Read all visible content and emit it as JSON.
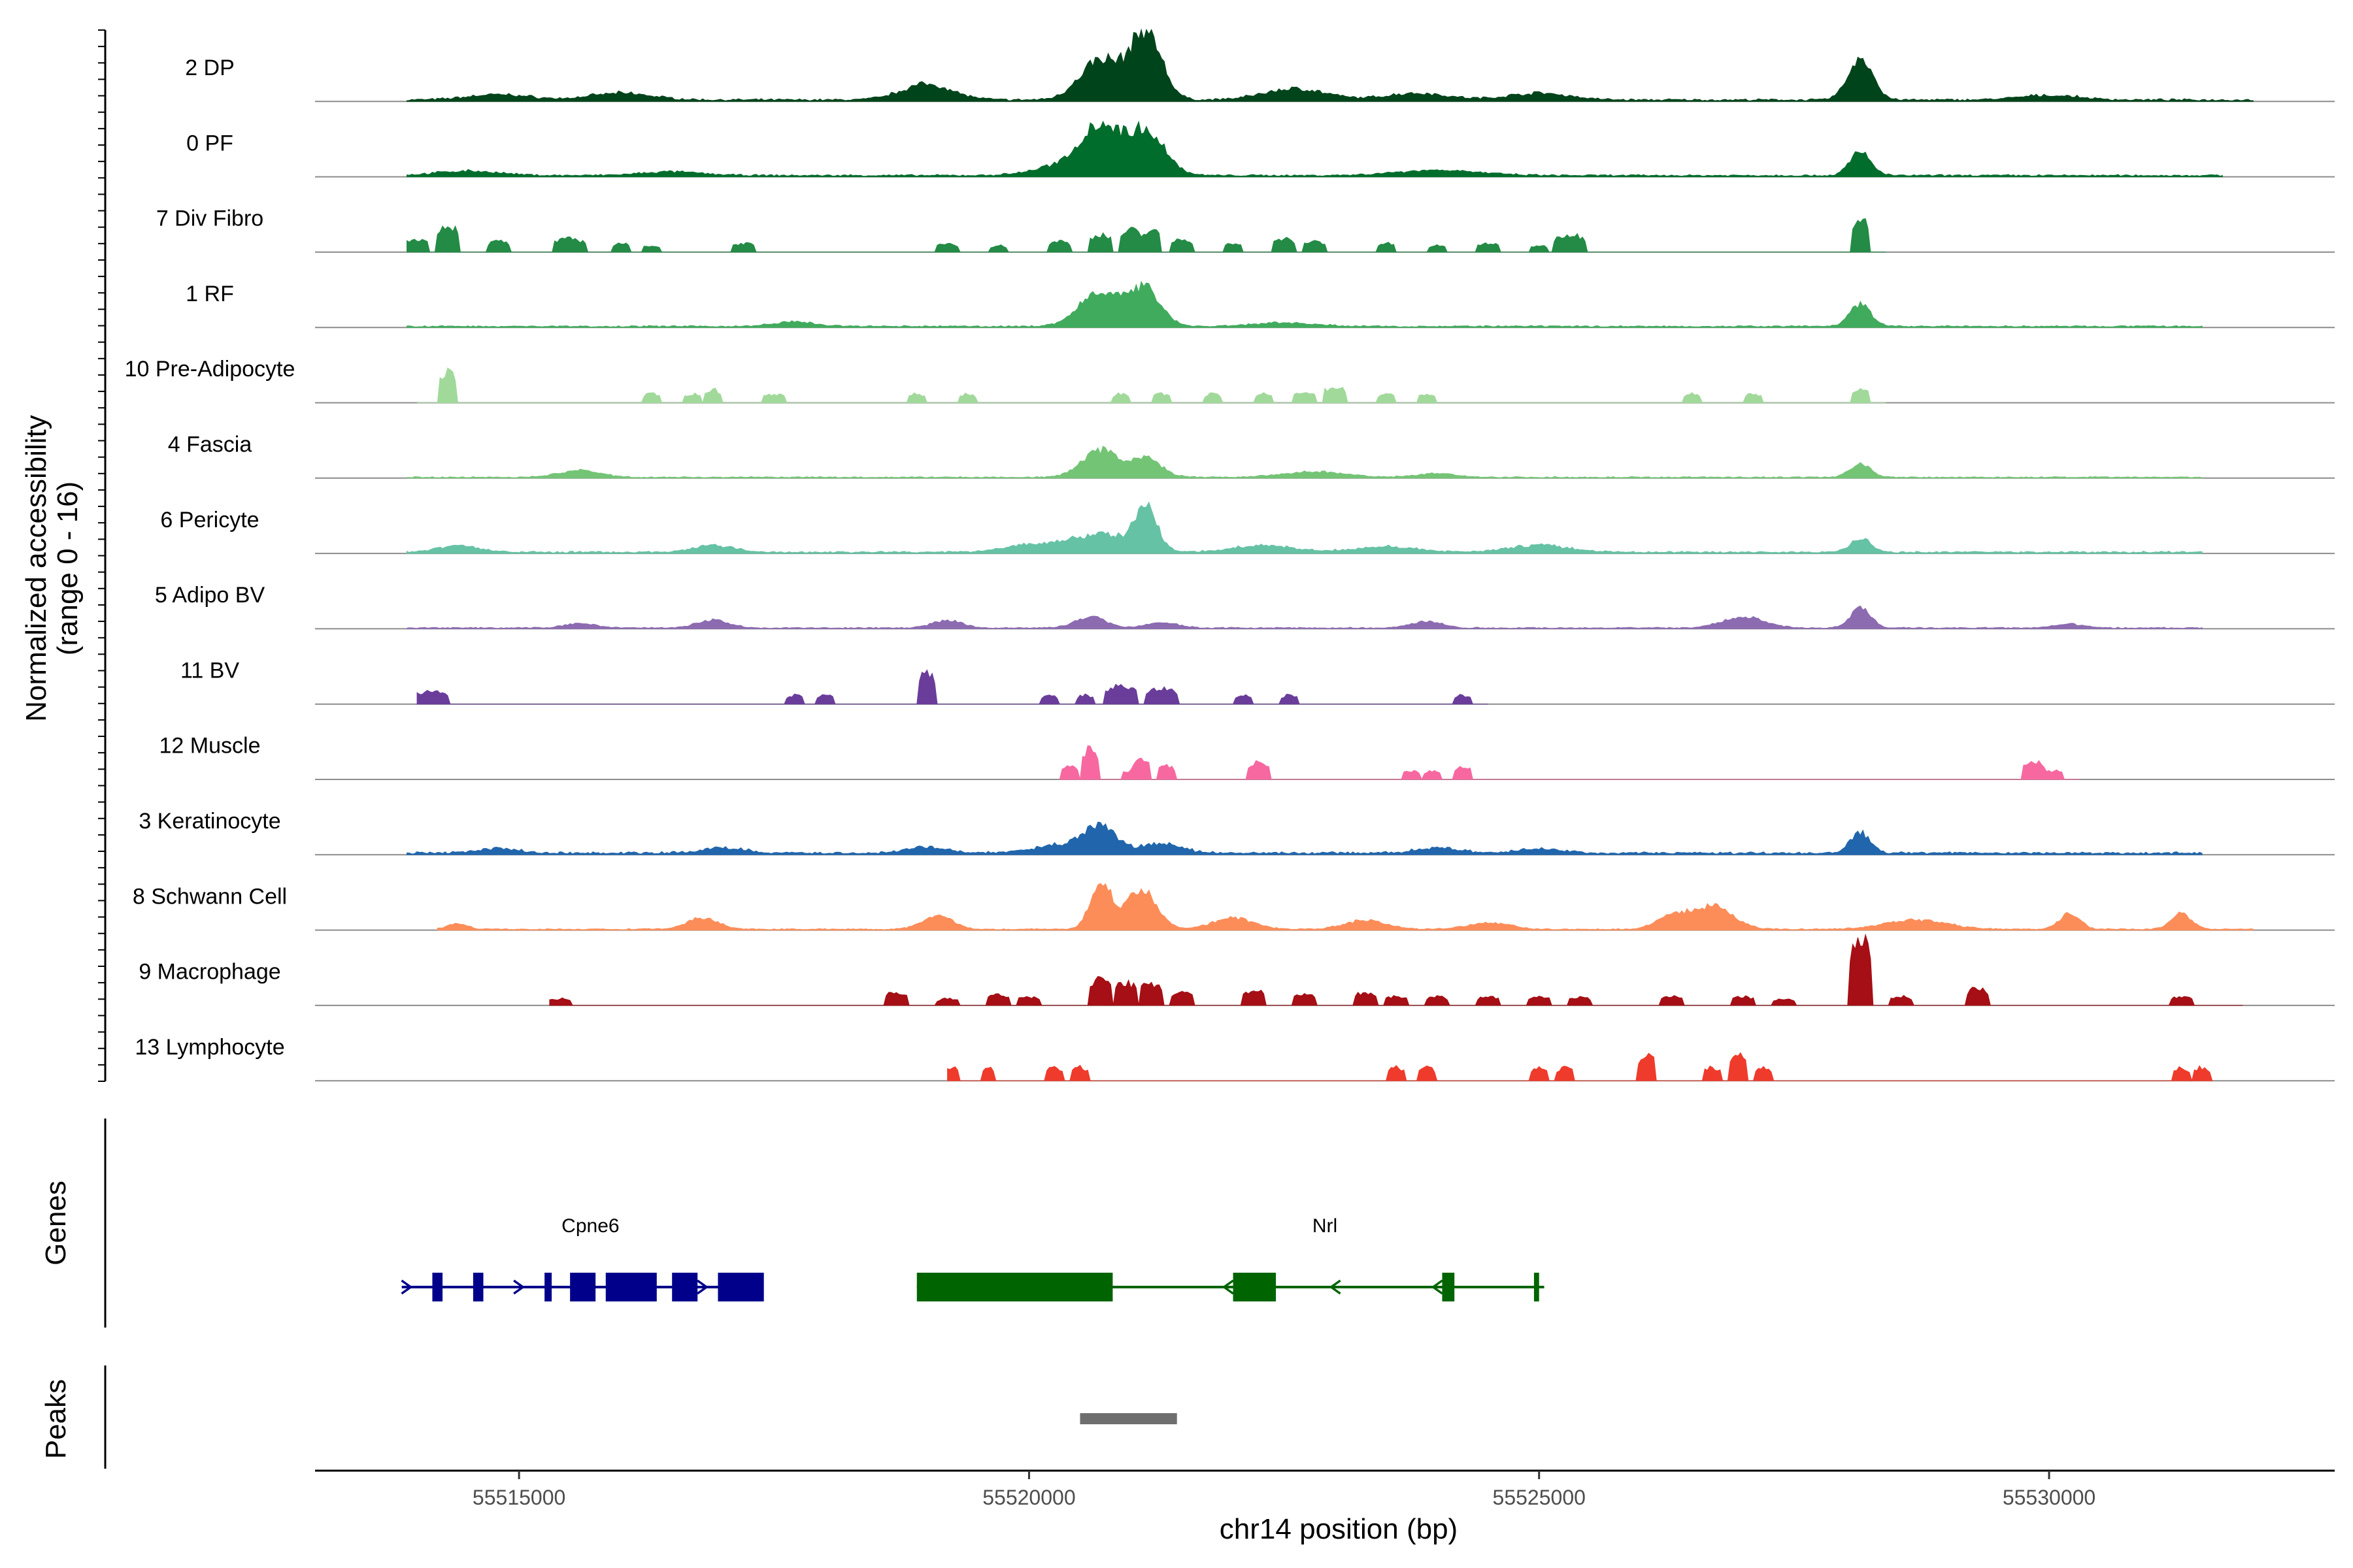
{
  "chart_data": {
    "type": "area",
    "title": "",
    "ylabel": "Normalized accessibility",
    "ylabel_sub": "(range 0 - 16)",
    "xlabel": "chr14 position (bp)",
    "xlim": [
      55513000,
      55532800
    ],
    "ylim": [
      0,
      16
    ],
    "x_ticks": [
      55515000,
      55520000,
      55525000,
      55530000
    ],
    "x_tick_labels": [
      "55515000",
      "55520000",
      "55525000",
      "55530000"
    ],
    "tracks_label": "Genes",
    "peaks_label": "Peaks",
    "series": [
      {
        "name": "2 DP",
        "color": "#00441b",
        "style": "smooth",
        "base": 0.35,
        "start": 55513900,
        "end": 55532000,
        "peaks": [
          [
            55520700,
            9,
            200
          ],
          [
            55521150,
            15,
            150
          ],
          [
            55528150,
            9,
            120
          ],
          [
            55519000,
            3.5,
            250
          ],
          [
            55522600,
            2.5,
            300
          ],
          [
            55516000,
            1.5,
            300
          ],
          [
            55523800,
            1.5,
            300
          ],
          [
            55525000,
            1.5,
            300
          ],
          [
            55514800,
            1.2,
            300
          ],
          [
            55530000,
            1,
            300
          ]
        ]
      },
      {
        "name": "0 PF",
        "color": "#006d2c",
        "style": "smooth",
        "base": 0.3,
        "start": 55513900,
        "end": 55531700,
        "peaks": [
          [
            55520700,
            10,
            180
          ],
          [
            55521150,
            10,
            180
          ],
          [
            55528150,
            5.5,
            100
          ],
          [
            55520400,
            2.5,
            300
          ],
          [
            55524000,
            1.2,
            400
          ],
          [
            55514500,
            1,
            300
          ],
          [
            55516500,
            0.8,
            300
          ]
        ]
      },
      {
        "name": "7 Div Fibro",
        "color": "#238b45",
        "style": "sparse",
        "start": 55513900,
        "end": 55528400,
        "peaks": [
          [
            55514300,
            6,
            120
          ],
          [
            55514000,
            3,
            100
          ],
          [
            55514800,
            2.5,
            100
          ],
          [
            55515500,
            3,
            150
          ],
          [
            55516000,
            2,
            80
          ],
          [
            55516300,
            1.5,
            80
          ],
          [
            55517200,
            2,
            100
          ],
          [
            55519200,
            2,
            100
          ],
          [
            55519700,
            1.5,
            80
          ],
          [
            55520300,
            2.5,
            100
          ],
          [
            55520700,
            4,
            100
          ],
          [
            55521000,
            5,
            100
          ],
          [
            55521200,
            5,
            80
          ],
          [
            55521500,
            3,
            100
          ],
          [
            55522000,
            2,
            80
          ],
          [
            55522500,
            3,
            100
          ],
          [
            55522800,
            2.5,
            100
          ],
          [
            55523500,
            2,
            80
          ],
          [
            55524000,
            1.5,
            80
          ],
          [
            55524500,
            2,
            100
          ],
          [
            55525000,
            1.5,
            80
          ],
          [
            55525300,
            4,
            150
          ],
          [
            55528150,
            8,
            80
          ]
        ]
      },
      {
        "name": "1 RF",
        "color": "#41ab5d",
        "style": "smooth",
        "base": 0.25,
        "start": 55513900,
        "end": 55531500,
        "peaks": [
          [
            55520700,
            8,
            200
          ],
          [
            55521150,
            8,
            150
          ],
          [
            55528150,
            5,
            100
          ],
          [
            55517700,
            1,
            200
          ],
          [
            55522500,
            0.8,
            300
          ]
        ]
      },
      {
        "name": "10 Pre-Adipocyte",
        "color": "#a1d99b",
        "style": "sparse",
        "start": 55514000,
        "end": 55528400,
        "peaks": [
          [
            55514300,
            7,
            90
          ],
          [
            55516300,
            2,
            80
          ],
          [
            55516700,
            2,
            80
          ],
          [
            55516900,
            3,
            80
          ],
          [
            55517500,
            2,
            100
          ],
          [
            55518900,
            2,
            80
          ],
          [
            55519400,
            2,
            80
          ],
          [
            55520900,
            2,
            80
          ],
          [
            55521300,
            2,
            80
          ],
          [
            55521800,
            2,
            80
          ],
          [
            55522300,
            2,
            80
          ],
          [
            55522700,
            2.5,
            100
          ],
          [
            55523000,
            3.5,
            120
          ],
          [
            55523500,
            2,
            80
          ],
          [
            55523900,
            2,
            80
          ],
          [
            55526500,
            2,
            80
          ],
          [
            55527100,
            2,
            80
          ],
          [
            55528150,
            3,
            80
          ]
        ]
      },
      {
        "name": "4 Fascia",
        "color": "#74c476",
        "style": "smooth",
        "base": 0.2,
        "start": 55513900,
        "end": 55531500,
        "peaks": [
          [
            55520700,
            6,
            180
          ],
          [
            55521150,
            4,
            150
          ],
          [
            55528150,
            3,
            100
          ],
          [
            55515600,
            1.5,
            200
          ],
          [
            55522800,
            1.2,
            300
          ],
          [
            55524000,
            0.8,
            200
          ]
        ]
      },
      {
        "name": "6 Pericyte",
        "color": "#66c2a4",
        "style": "smooth",
        "base": 0.3,
        "start": 55513900,
        "end": 55531500,
        "peaks": [
          [
            55521150,
            10,
            100
          ],
          [
            55520700,
            4,
            300
          ],
          [
            55528150,
            3,
            100
          ],
          [
            55514400,
            1.5,
            200
          ],
          [
            55516900,
            1.5,
            200
          ],
          [
            55520000,
            1.5,
            250
          ],
          [
            55522300,
            1.5,
            300
          ],
          [
            55523500,
            1.2,
            300
          ],
          [
            55525000,
            1.5,
            300
          ]
        ]
      },
      {
        "name": "5 Adipo BV",
        "color": "#8c6bb1",
        "style": "smooth",
        "base": 0.2,
        "start": 55513900,
        "end": 55531500,
        "peaks": [
          [
            55528150,
            4.5,
            100
          ],
          [
            55520600,
            2.5,
            150
          ],
          [
            55527000,
            2.5,
            200
          ],
          [
            55516900,
            1.8,
            150
          ],
          [
            55519200,
            1.6,
            150
          ],
          [
            55521300,
            1.3,
            150
          ],
          [
            55523900,
            1.5,
            150
          ],
          [
            55515600,
            1,
            150
          ],
          [
            55530200,
            0.8,
            150
          ]
        ]
      },
      {
        "name": "11 BV",
        "color": "#6a3d9a",
        "style": "sparse",
        "start": 55514000,
        "end": 55524500,
        "peaks": [
          [
            55514150,
            3,
            150
          ],
          [
            55517700,
            2,
            80
          ],
          [
            55518000,
            2,
            80
          ],
          [
            55519000,
            7,
            80
          ],
          [
            55520200,
            2,
            80
          ],
          [
            55520550,
            2,
            80
          ],
          [
            55520900,
            4,
            150
          ],
          [
            55521300,
            3.5,
            150
          ],
          [
            55522100,
            2,
            80
          ],
          [
            55522550,
            2,
            80
          ],
          [
            55524250,
            2,
            80
          ]
        ]
      },
      {
        "name": "12 Muscle",
        "color": "#f768a1",
        "style": "sparse",
        "start": 55520300,
        "end": 55530300,
        "peaks": [
          [
            55520400,
            3,
            80
          ],
          [
            55520600,
            7,
            80
          ],
          [
            55521000,
            2,
            80
          ],
          [
            55521100,
            5,
            80
          ],
          [
            55521350,
            3,
            80
          ],
          [
            55522250,
            4,
            100
          ],
          [
            55523750,
            2,
            80
          ],
          [
            55523950,
            2,
            80
          ],
          [
            55524250,
            3,
            80
          ],
          [
            55529850,
            4,
            100
          ],
          [
            55530050,
            2,
            80
          ]
        ]
      },
      {
        "name": "3 Keratinocyte",
        "color": "#2166ac",
        "style": "smooth",
        "base": 0.4,
        "start": 55513900,
        "end": 55531500,
        "peaks": [
          [
            55520700,
            5,
            150
          ],
          [
            55528150,
            4.5,
            100
          ],
          [
            55520400,
            2,
            300
          ],
          [
            55521300,
            2,
            200
          ],
          [
            55519000,
            1.3,
            200
          ],
          [
            55517000,
            1.2,
            200
          ],
          [
            55524000,
            1.2,
            200
          ],
          [
            55525000,
            1,
            200
          ],
          [
            55514800,
            1,
            200
          ]
        ]
      },
      {
        "name": "8 Schwann Cell",
        "color": "#fc8d59",
        "style": "smooth",
        "base": 0.2,
        "start": 55514200,
        "end": 55532000,
        "peaks": [
          [
            55520700,
            11,
            100
          ],
          [
            55521100,
            9,
            150
          ],
          [
            55526700,
            5,
            200
          ],
          [
            55526300,
            3,
            150
          ],
          [
            55519100,
            3,
            150
          ],
          [
            55530200,
            3.5,
            100
          ],
          [
            55531300,
            3.5,
            100
          ],
          [
            55522000,
            2.5,
            200
          ],
          [
            55523300,
            2,
            200
          ],
          [
            55524500,
            1.5,
            200
          ],
          [
            55528700,
            2,
            300
          ],
          [
            55516800,
            2.5,
            150
          ],
          [
            55514400,
            1.2,
            100
          ]
        ]
      },
      {
        "name": "9 Macrophage",
        "color": "#a50f15",
        "style": "sparse",
        "start": 55515300,
        "end": 55531900,
        "peaks": [
          [
            55515400,
            1.5,
            100
          ],
          [
            55518700,
            3,
            120
          ],
          [
            55519200,
            1.5,
            100
          ],
          [
            55519700,
            2.5,
            100
          ],
          [
            55520000,
            2,
            100
          ],
          [
            55520700,
            6,
            120
          ],
          [
            55520950,
            5,
            120
          ],
          [
            55521200,
            5,
            120
          ],
          [
            55521500,
            3,
            100
          ],
          [
            55522200,
            3.5,
            100
          ],
          [
            55522700,
            2.5,
            100
          ],
          [
            55523300,
            3,
            100
          ],
          [
            55523600,
            2,
            100
          ],
          [
            55524000,
            2,
            100
          ],
          [
            55524500,
            2,
            100
          ],
          [
            55525000,
            2,
            100
          ],
          [
            55525400,
            2,
            100
          ],
          [
            55526300,
            2,
            100
          ],
          [
            55527000,
            2,
            100
          ],
          [
            55527400,
            1.5,
            100
          ],
          [
            55528150,
            15,
            100
          ],
          [
            55528550,
            2,
            100
          ],
          [
            55529300,
            4,
            100
          ],
          [
            55531300,
            2,
            100
          ],
          [
            55531950,
            1.5,
            40
          ]
        ]
      },
      {
        "name": "13 Lymphocyte",
        "color": "#ef3b2c",
        "style": "sparse",
        "start": 55519200,
        "end": 55531600,
        "peaks": [
          [
            55519250,
            3,
            60
          ],
          [
            55519600,
            3,
            60
          ],
          [
            55520250,
            3,
            80
          ],
          [
            55520500,
            3,
            80
          ],
          [
            55523600,
            3,
            80
          ],
          [
            55523900,
            3,
            80
          ],
          [
            55525000,
            3,
            80
          ],
          [
            55525250,
            3,
            80
          ],
          [
            55526050,
            6,
            80
          ],
          [
            55526700,
            3,
            80
          ],
          [
            55526950,
            6,
            80
          ],
          [
            55527200,
            3,
            80
          ],
          [
            55531300,
            3,
            80
          ],
          [
            55531500,
            3,
            80
          ]
        ]
      }
    ],
    "genes": [
      {
        "name": "Cpne6",
        "strand": "+",
        "color": "#00008b",
        "start": 55513850,
        "end": 55517350,
        "exons": [
          [
            55514150,
            55514250
          ],
          [
            55514550,
            55514650
          ],
          [
            55515250,
            55515320
          ],
          [
            55515500,
            55515750
          ],
          [
            55515850,
            55516350
          ],
          [
            55516500,
            55516750
          ],
          [
            55516950,
            55517400
          ]
        ]
      },
      {
        "name": "Nrl",
        "strand": "-",
        "color": "#006400",
        "start": 55518900,
        "end": 55525050,
        "exons": [
          [
            55518900,
            55520820
          ],
          [
            55522000,
            55522420
          ],
          [
            55524050,
            55524170
          ],
          [
            55524950,
            55525000
          ]
        ]
      }
    ],
    "peaks_regions": [
      [
        55520500,
        55521450
      ]
    ]
  }
}
